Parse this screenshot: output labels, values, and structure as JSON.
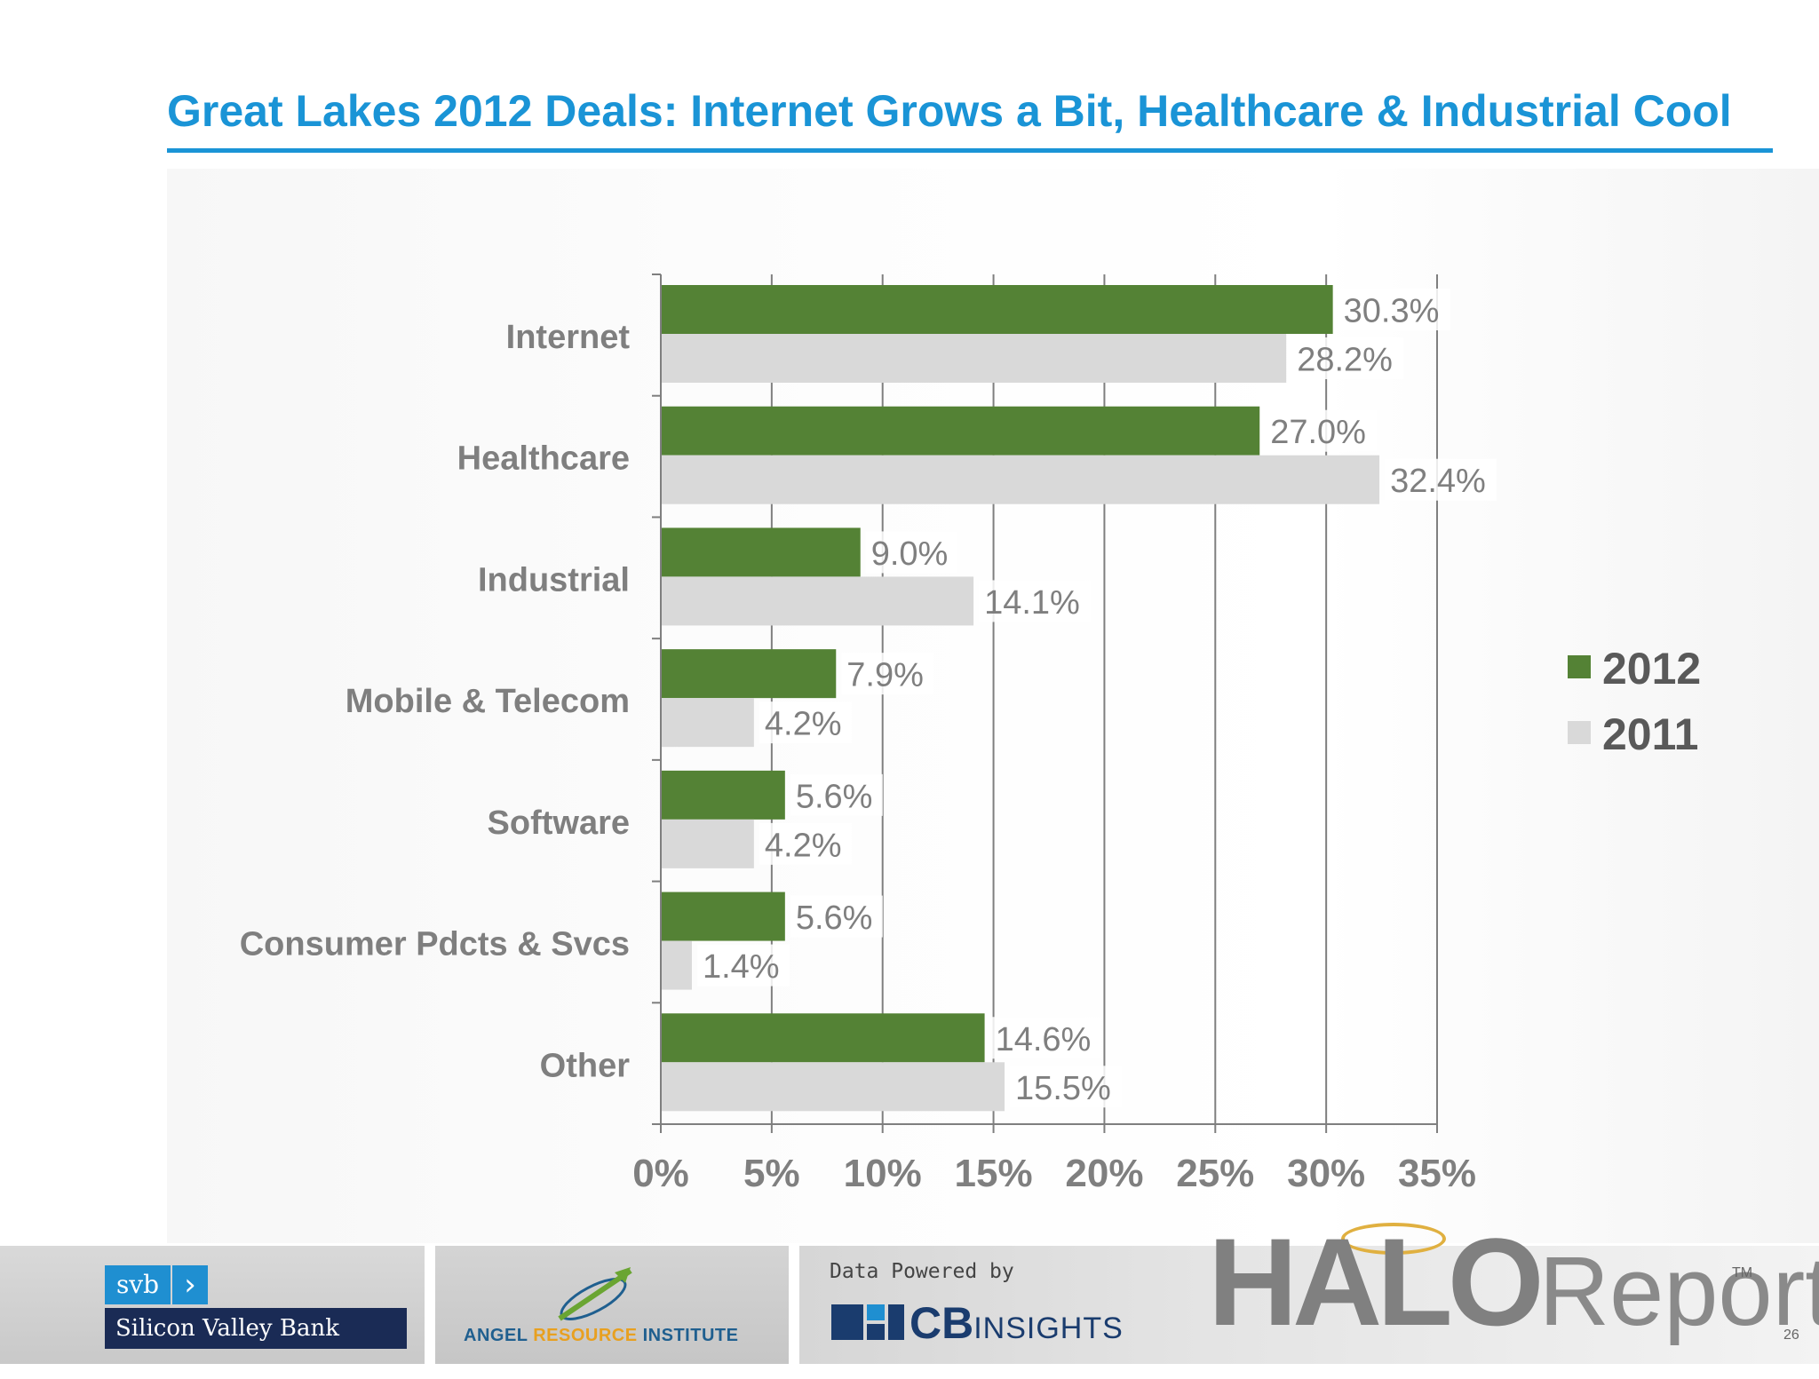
{
  "slide": {
    "title": "Great Lakes 2012 Deals: Internet Grows a Bit, Healthcare & Industrial Cool",
    "page_number": "26"
  },
  "chart_data": {
    "type": "bar",
    "orientation": "horizontal",
    "categories": [
      "Internet",
      "Healthcare",
      "Industrial",
      "Mobile & Telecom",
      "Software",
      "Consumer Pdcts & Svcs",
      "Other"
    ],
    "series": [
      {
        "name": "2012",
        "values": [
          30.3,
          27.0,
          9.0,
          7.9,
          5.6,
          5.6,
          14.6
        ],
        "labels": [
          "30.3%",
          "27.0%",
          "9.0%",
          "7.9%",
          "5.6%",
          "5.6%",
          "14.6%"
        ],
        "color": "#548235"
      },
      {
        "name": "2011",
        "values": [
          28.2,
          32.4,
          14.1,
          4.2,
          4.2,
          1.4,
          15.5
        ],
        "labels": [
          "28.2%",
          "32.4%",
          "14.1%",
          "4.2%",
          "4.2%",
          "1.4%",
          "15.5%"
        ],
        "color": "#d9d9d9"
      }
    ],
    "x_ticks": [
      "0%",
      "5%",
      "10%",
      "15%",
      "20%",
      "25%",
      "30%",
      "35%"
    ],
    "xlim": [
      0,
      35
    ],
    "grid": "vertical",
    "legend_position": "right",
    "label_color": "#7f7f7f"
  },
  "footer": {
    "svb": {
      "mark": "svb",
      "name": "Silicon Valley Bank"
    },
    "ari": {
      "pre": "ANGEL ",
      "highlight": "RESOURCE",
      "post": " INSTITUTE"
    },
    "cb": {
      "powered_by": "Data Powered by",
      "strong": "CB",
      "light": "INSIGHTS"
    },
    "halo": {
      "bold": "HALO",
      "light": "Report",
      "tm": "TM"
    }
  }
}
